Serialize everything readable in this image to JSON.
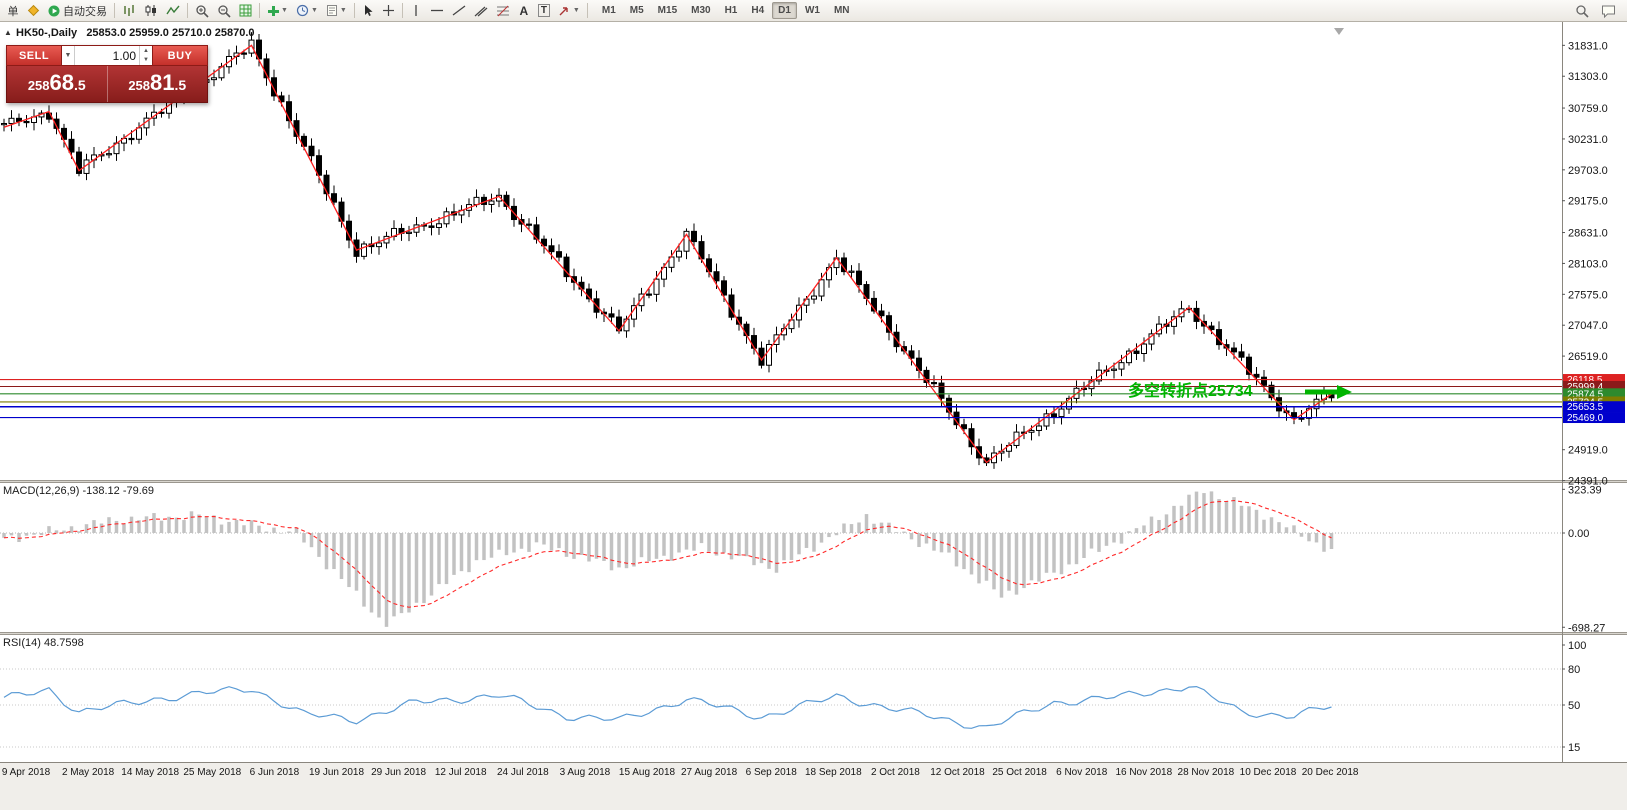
{
  "toolbar": {
    "order_label": "单",
    "autotrade_label": "自动交易",
    "text_tool": "A",
    "label_tool": "T",
    "timeframes": [
      "M1",
      "M5",
      "M15",
      "M30",
      "H1",
      "H4",
      "D1",
      "W1",
      "MN"
    ],
    "active_timeframe": "D1",
    "icons": [
      "new-order-icon",
      "autotrade-play-icon",
      "bar-chart-icon",
      "candlestick-chart-icon",
      "line-chart-icon",
      "zoom-in-icon",
      "zoom-out-icon",
      "grid-icon",
      "indicators-icon",
      "periods-icon",
      "templates-icon",
      "cursor-icon",
      "crosshair-icon",
      "vertical-line-icon",
      "horizontal-line-icon",
      "trendline-icon",
      "channel-icon",
      "fibonacci-icon",
      "text-icon",
      "label-icon",
      "arrows-icon",
      "search-icon",
      "chat-icon"
    ]
  },
  "chart_header": {
    "symbol_title": "HK50-,Daily",
    "ohlc": "25853.0 25959.0 25710.0 25870.0"
  },
  "one_click": {
    "sell_label": "SELL",
    "buy_label": "BUY",
    "volume": "1.00",
    "bid": "25868.5",
    "ask": "25881.5",
    "bid_prefix": "258",
    "bid_big": "68",
    "bid_frac": ".5",
    "ask_prefix": "258",
    "ask_big": "81",
    "ask_frac": ".5"
  },
  "annotation": {
    "text": "多空转折点25734",
    "color": "#00b400"
  },
  "indicators": {
    "macd_label": "MACD(12,26,9) -138.12 -79.69",
    "rsi_label": "RSI(14) 48.7598"
  },
  "axes": {
    "price_labels": [
      31831.0,
      31303.0,
      30759.0,
      30231.0,
      29703.0,
      29175.0,
      28631.0,
      28103.0,
      27575.0,
      27047.0,
      26519.0,
      24919.0,
      24391.0
    ],
    "macd_labels": [
      323.39,
      0.0,
      -698.27
    ],
    "rsi_labels": [
      100,
      80,
      50,
      15
    ],
    "dates": [
      "9 Apr 2018",
      "2 May 2018",
      "14 May 2018",
      "25 May 2018",
      "6 Jun 2018",
      "19 Jun 2018",
      "29 Jun 2018",
      "12 Jul 2018",
      "24 Jul 2018",
      "3 Aug 2018",
      "15 Aug 2018",
      "27 Aug 2018",
      "6 Sep 2018",
      "18 Sep 2018",
      "2 Oct 2018",
      "12 Oct 2018",
      "25 Oct 2018",
      "6 Nov 2018",
      "16 Nov 2018",
      "28 Nov 2018",
      "10 Dec 2018",
      "20 Dec 2018"
    ]
  },
  "chart_data": {
    "type": "candlestick",
    "symbol": "HK50-",
    "timeframe": "Daily",
    "price_range": [
      24391.0,
      31831.0
    ],
    "candle_count": 178,
    "zigzag": [
      [
        0,
        30430
      ],
      [
        6,
        30700
      ],
      [
        10,
        29690
      ],
      [
        33,
        31830
      ],
      [
        47,
        28330
      ],
      [
        66,
        29250
      ],
      [
        82,
        26950
      ],
      [
        91,
        28600
      ],
      [
        101,
        26450
      ],
      [
        111,
        28200
      ],
      [
        131,
        24700
      ],
      [
        158,
        27350
      ],
      [
        172,
        25430
      ],
      [
        177,
        25870
      ]
    ],
    "horizontal_lines": [
      {
        "price": 26118.5,
        "color": "#dd2222",
        "label": "26118.5"
      },
      {
        "price": 25999.4,
        "color": "#8b1a1a",
        "label": "25999.4"
      },
      {
        "price": 25874.5,
        "color": "#2d8a2d",
        "label": "25874.5"
      },
      {
        "price": 25734.5,
        "color": "#7d7d00",
        "label": "25734.5"
      },
      {
        "price": 25653.5,
        "color": "#0000cc",
        "label": "25653.5",
        "highlight": true
      },
      {
        "price": 25469.0,
        "color": "#0000cc",
        "label": "25469.0"
      }
    ],
    "macd": {
      "params": "12,26,9",
      "main_end": -138.12,
      "signal_end": -79.69,
      "anchors": [
        [
          0,
          -50
        ],
        [
          15,
          100
        ],
        [
          26,
          130
        ],
        [
          39,
          0
        ],
        [
          51,
          -690
        ],
        [
          63,
          -210
        ],
        [
          71,
          -90
        ],
        [
          82,
          -260
        ],
        [
          93,
          -110
        ],
        [
          103,
          -265
        ],
        [
          115,
          130
        ],
        [
          126,
          -180
        ],
        [
          133,
          -470
        ],
        [
          140,
          -300
        ],
        [
          149,
          -40
        ],
        [
          160,
          320
        ],
        [
          168,
          140
        ],
        [
          177,
          -138
        ]
      ]
    },
    "rsi": {
      "params": "14",
      "end": 48.7598,
      "anchors": [
        [
          0,
          55
        ],
        [
          6,
          63
        ],
        [
          10,
          44
        ],
        [
          20,
          55
        ],
        [
          33,
          64
        ],
        [
          40,
          42
        ],
        [
          47,
          38
        ],
        [
          55,
          52
        ],
        [
          66,
          58
        ],
        [
          75,
          41
        ],
        [
          82,
          37
        ],
        [
          91,
          55
        ],
        [
          101,
          40
        ],
        [
          111,
          57
        ],
        [
          120,
          45
        ],
        [
          131,
          31
        ],
        [
          140,
          52
        ],
        [
          149,
          57
        ],
        [
          158,
          66
        ],
        [
          165,
          44
        ],
        [
          172,
          41
        ],
        [
          177,
          48.76
        ]
      ]
    }
  }
}
